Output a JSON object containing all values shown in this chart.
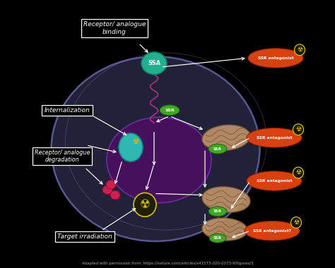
{
  "bg_color": "#000000",
  "cell_color": "#252540",
  "cell_edge_color": "#6060a0",
  "nucleus_color": "#4a1060",
  "nucleus_edge_color": "#7030a0",
  "teal_ball_color": "#30b8b0",
  "ssa_ball_color": "#20b090",
  "ssa_label": "SSA",
  "receptor_box_text": "Receptor/ analogue\nbinding",
  "internalization_text": "Internalization",
  "degradation_text": "Receptor/ analogue\ndegradation",
  "irradiation_text": "Target irradiation",
  "caption": "Adapted with permission from: https://nature.com/articles/s41573-020-0073-9/figures/5",
  "ssr_green_color": "#40a820",
  "mito_color": "#c0956a",
  "mito_line_color": "#7a5530",
  "antagonist_color": "#d84010",
  "arrow_color": "#ffffff",
  "box_bg": "#000000",
  "box_text_color": "#ffffff",
  "radiation_yellow": "#d8c010",
  "radiation_black": "#000000",
  "lyso_color": "#cc2050",
  "wavy_color": "#a03080"
}
